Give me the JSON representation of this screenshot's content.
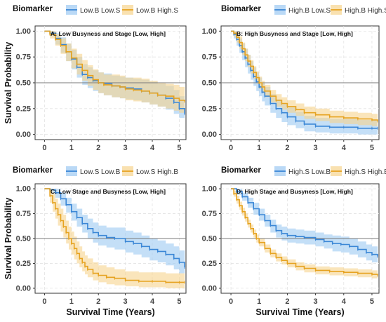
{
  "chart_data": [
    {
      "type": "line",
      "title": "A: Low Busyness and Stage [Low, High]",
      "legend_title": "Biomarker",
      "legend_placement": "top",
      "xlabel": "",
      "ylabel": "Survival Probability",
      "xlim": [
        0,
        5.2
      ],
      "ylim": [
        0,
        1
      ],
      "x_ticks": [
        "0",
        "1",
        "2",
        "3",
        "4",
        "5"
      ],
      "y_ticks": [
        "0.00",
        "0.25",
        "0.50",
        "0.75",
        "1.00"
      ],
      "reference_line": 0.5,
      "grid": true,
      "series": [
        {
          "name": "Low.B Low.S",
          "color": "#3b87d6",
          "band": "#9cc9f2",
          "x": [
            0,
            0.2,
            0.4,
            0.6,
            0.8,
            1.0,
            1.2,
            1.4,
            1.6,
            1.8,
            2.0,
            2.2,
            2.5,
            2.8,
            3.0,
            3.3,
            3.6,
            3.9,
            4.2,
            4.5,
            4.8,
            5.0,
            5.2
          ],
          "y": [
            1.0,
            0.98,
            0.93,
            0.87,
            0.8,
            0.73,
            0.65,
            0.58,
            0.55,
            0.52,
            0.5,
            0.49,
            0.47,
            0.46,
            0.45,
            0.44,
            0.42,
            0.4,
            0.38,
            0.35,
            0.31,
            0.25,
            0.2
          ],
          "lower": [
            1.0,
            0.95,
            0.87,
            0.79,
            0.71,
            0.63,
            0.55,
            0.48,
            0.45,
            0.42,
            0.4,
            0.38,
            0.36,
            0.35,
            0.34,
            0.33,
            0.31,
            0.29,
            0.27,
            0.24,
            0.2,
            0.16,
            0.12
          ],
          "upper": [
            1.0,
            1.0,
            0.98,
            0.94,
            0.88,
            0.82,
            0.75,
            0.68,
            0.65,
            0.62,
            0.6,
            0.59,
            0.57,
            0.56,
            0.55,
            0.54,
            0.53,
            0.51,
            0.49,
            0.47,
            0.43,
            0.37,
            0.32
          ]
        },
        {
          "name": "Low.B High.S",
          "color": "#e6a321",
          "band": "#f7d48e",
          "x": [
            0,
            0.2,
            0.4,
            0.6,
            0.8,
            1.0,
            1.2,
            1.4,
            1.6,
            1.8,
            2.0,
            2.2,
            2.5,
            2.8,
            3.0,
            3.3,
            3.6,
            3.9,
            4.2,
            4.5,
            4.8,
            5.0,
            5.2
          ],
          "y": [
            1.0,
            0.97,
            0.92,
            0.86,
            0.8,
            0.74,
            0.68,
            0.62,
            0.57,
            0.53,
            0.5,
            0.48,
            0.47,
            0.46,
            0.44,
            0.43,
            0.42,
            0.4,
            0.38,
            0.37,
            0.35,
            0.33,
            0.32
          ],
          "lower": [
            1.0,
            0.93,
            0.86,
            0.78,
            0.71,
            0.64,
            0.58,
            0.52,
            0.47,
            0.43,
            0.4,
            0.38,
            0.36,
            0.35,
            0.33,
            0.32,
            0.31,
            0.29,
            0.27,
            0.25,
            0.23,
            0.21,
            0.19
          ],
          "upper": [
            1.0,
            1.0,
            0.97,
            0.93,
            0.88,
            0.83,
            0.78,
            0.72,
            0.67,
            0.63,
            0.6,
            0.58,
            0.58,
            0.57,
            0.55,
            0.55,
            0.54,
            0.52,
            0.5,
            0.49,
            0.48,
            0.46,
            0.45
          ]
        }
      ]
    },
    {
      "type": "line",
      "title": "B: High Busyness and Stage [Low, High]",
      "legend_title": "Biomarker",
      "legend_placement": "top",
      "xlabel": "",
      "ylabel": "",
      "xlim": [
        0,
        5.2
      ],
      "ylim": [
        0,
        1
      ],
      "x_ticks": [
        "0",
        "1",
        "2",
        "3",
        "4",
        "5"
      ],
      "y_ticks": [
        "0.00",
        "0.25",
        "0.50",
        "0.75",
        "1.00"
      ],
      "reference_line": 0.5,
      "grid": true,
      "series": [
        {
          "name": "High.B Low.S",
          "color": "#3b87d6",
          "band": "#9cc9f2",
          "x": [
            0,
            0.1,
            0.2,
            0.3,
            0.4,
            0.5,
            0.6,
            0.7,
            0.8,
            0.9,
            1.0,
            1.1,
            1.2,
            1.4,
            1.6,
            1.8,
            2.0,
            2.3,
            2.6,
            3.0,
            3.5,
            4.0,
            4.5,
            5.0,
            5.2
          ],
          "y": [
            1.0,
            0.97,
            0.92,
            0.86,
            0.8,
            0.74,
            0.68,
            0.62,
            0.56,
            0.51,
            0.46,
            0.41,
            0.37,
            0.3,
            0.25,
            0.21,
            0.17,
            0.13,
            0.1,
            0.08,
            0.07,
            0.07,
            0.06,
            0.06,
            0.06
          ],
          "lower": [
            1.0,
            0.93,
            0.86,
            0.79,
            0.72,
            0.65,
            0.59,
            0.53,
            0.47,
            0.42,
            0.37,
            0.32,
            0.28,
            0.21,
            0.16,
            0.12,
            0.09,
            0.06,
            0.03,
            0.02,
            0.01,
            0.01,
            0.0,
            0.0,
            0.0
          ],
          "upper": [
            1.0,
            1.0,
            0.98,
            0.93,
            0.88,
            0.83,
            0.77,
            0.71,
            0.65,
            0.6,
            0.55,
            0.5,
            0.46,
            0.39,
            0.34,
            0.3,
            0.26,
            0.22,
            0.18,
            0.16,
            0.15,
            0.15,
            0.14,
            0.14,
            0.14
          ]
        },
        {
          "name": "High.B High.S",
          "color": "#e6a321",
          "band": "#f7d48e",
          "x": [
            0,
            0.1,
            0.2,
            0.3,
            0.4,
            0.5,
            0.6,
            0.7,
            0.8,
            0.9,
            1.0,
            1.1,
            1.2,
            1.4,
            1.6,
            1.8,
            2.0,
            2.3,
            2.6,
            3.0,
            3.5,
            4.0,
            4.5,
            5.0,
            5.2
          ],
          "y": [
            1.0,
            0.98,
            0.94,
            0.89,
            0.83,
            0.77,
            0.71,
            0.66,
            0.6,
            0.55,
            0.5,
            0.46,
            0.42,
            0.37,
            0.33,
            0.3,
            0.27,
            0.24,
            0.21,
            0.19,
            0.17,
            0.16,
            0.15,
            0.14,
            0.13
          ],
          "lower": [
            1.0,
            0.95,
            0.89,
            0.83,
            0.77,
            0.71,
            0.65,
            0.59,
            0.54,
            0.49,
            0.44,
            0.4,
            0.36,
            0.31,
            0.27,
            0.24,
            0.21,
            0.18,
            0.15,
            0.13,
            0.11,
            0.1,
            0.09,
            0.08,
            0.07
          ],
          "upper": [
            1.0,
            1.0,
            0.99,
            0.95,
            0.89,
            0.83,
            0.77,
            0.72,
            0.66,
            0.61,
            0.56,
            0.52,
            0.48,
            0.43,
            0.39,
            0.36,
            0.33,
            0.3,
            0.27,
            0.25,
            0.23,
            0.22,
            0.21,
            0.2,
            0.19
          ]
        }
      ]
    },
    {
      "type": "line",
      "title": "C: Low Stage and Busyness [Low, High]",
      "legend_title": "Biomarker",
      "legend_placement": "top",
      "xlabel": "Survival Time (Years)",
      "ylabel": "Survival Probability",
      "xlim": [
        0,
        5.2
      ],
      "ylim": [
        0,
        1
      ],
      "x_ticks": [
        "0",
        "1",
        "2",
        "3",
        "4",
        "5"
      ],
      "y_ticks": [
        "0.00",
        "0.25",
        "0.50",
        "0.75",
        "1.00"
      ],
      "reference_line": 0.5,
      "grid": true,
      "series": [
        {
          "name": "Low.S Low.B",
          "color": "#3b87d6",
          "band": "#9cc9f2",
          "x": [
            0,
            0.2,
            0.4,
            0.6,
            0.8,
            1.0,
            1.2,
            1.4,
            1.6,
            1.8,
            2.0,
            2.3,
            2.6,
            3.0,
            3.3,
            3.6,
            3.9,
            4.2,
            4.5,
            4.8,
            5.0,
            5.2
          ],
          "y": [
            1.0,
            0.99,
            0.96,
            0.9,
            0.84,
            0.77,
            0.71,
            0.65,
            0.6,
            0.56,
            0.53,
            0.51,
            0.5,
            0.47,
            0.45,
            0.42,
            0.39,
            0.37,
            0.34,
            0.3,
            0.26,
            0.21
          ],
          "lower": [
            1.0,
            0.96,
            0.91,
            0.83,
            0.76,
            0.68,
            0.62,
            0.56,
            0.5,
            0.46,
            0.43,
            0.41,
            0.39,
            0.36,
            0.34,
            0.31,
            0.28,
            0.26,
            0.23,
            0.19,
            0.15,
            0.11
          ],
          "upper": [
            1.0,
            1.0,
            1.0,
            0.96,
            0.91,
            0.85,
            0.8,
            0.74,
            0.7,
            0.66,
            0.63,
            0.61,
            0.61,
            0.58,
            0.56,
            0.53,
            0.5,
            0.48,
            0.45,
            0.42,
            0.38,
            0.33
          ]
        },
        {
          "name": "Low.S High.B",
          "color": "#e6a321",
          "band": "#f7d48e",
          "x": [
            0,
            0.2,
            0.3,
            0.4,
            0.5,
            0.6,
            0.7,
            0.8,
            0.9,
            1.0,
            1.1,
            1.2,
            1.3,
            1.4,
            1.5,
            1.6,
            1.8,
            2.0,
            2.3,
            2.6,
            3.0,
            3.5,
            4.0,
            4.5,
            5.0,
            5.2
          ],
          "y": [
            1.0,
            0.93,
            0.86,
            0.8,
            0.74,
            0.68,
            0.62,
            0.56,
            0.5,
            0.45,
            0.4,
            0.35,
            0.3,
            0.26,
            0.22,
            0.19,
            0.15,
            0.13,
            0.11,
            0.1,
            0.08,
            0.07,
            0.07,
            0.06,
            0.06,
            0.06
          ],
          "lower": [
            1.0,
            0.86,
            0.77,
            0.7,
            0.63,
            0.57,
            0.51,
            0.45,
            0.39,
            0.34,
            0.29,
            0.25,
            0.21,
            0.17,
            0.14,
            0.11,
            0.08,
            0.06,
            0.04,
            0.03,
            0.02,
            0.01,
            0.01,
            0.0,
            0.0,
            0.0
          ],
          "upper": [
            1.0,
            1.0,
            0.95,
            0.9,
            0.85,
            0.8,
            0.74,
            0.68,
            0.62,
            0.57,
            0.52,
            0.47,
            0.42,
            0.37,
            0.33,
            0.3,
            0.26,
            0.23,
            0.21,
            0.19,
            0.17,
            0.16,
            0.16,
            0.15,
            0.15,
            0.15
          ]
        }
      ]
    },
    {
      "type": "line",
      "title": "D: High Stage and Busyness [Low, High]",
      "legend_title": "Biomarker",
      "legend_placement": "top",
      "xlabel": "Survival Time (Years)",
      "ylabel": "",
      "xlim": [
        0,
        5.2
      ],
      "ylim": [
        0,
        1
      ],
      "x_ticks": [
        "0",
        "1",
        "2",
        "3",
        "4",
        "5"
      ],
      "y_ticks": [
        "0.00",
        "0.25",
        "0.50",
        "0.75",
        "1.00"
      ],
      "reference_line": 0.5,
      "grid": true,
      "series": [
        {
          "name": "High.S Low.B",
          "color": "#3b87d6",
          "band": "#9cc9f2",
          "x": [
            0,
            0.2,
            0.4,
            0.6,
            0.8,
            1.0,
            1.2,
            1.4,
            1.6,
            1.8,
            2.0,
            2.3,
            2.6,
            3.0,
            3.3,
            3.6,
            3.9,
            4.2,
            4.5,
            4.8,
            5.0,
            5.2
          ],
          "y": [
            1.0,
            0.97,
            0.92,
            0.86,
            0.8,
            0.74,
            0.68,
            0.63,
            0.58,
            0.55,
            0.53,
            0.52,
            0.51,
            0.49,
            0.47,
            0.45,
            0.44,
            0.42,
            0.39,
            0.36,
            0.34,
            0.32
          ],
          "lower": [
            1.0,
            0.94,
            0.88,
            0.81,
            0.74,
            0.68,
            0.62,
            0.56,
            0.51,
            0.48,
            0.46,
            0.45,
            0.44,
            0.42,
            0.4,
            0.37,
            0.36,
            0.34,
            0.31,
            0.28,
            0.26,
            0.24
          ],
          "upper": [
            1.0,
            1.0,
            0.96,
            0.91,
            0.86,
            0.8,
            0.74,
            0.69,
            0.64,
            0.62,
            0.6,
            0.59,
            0.58,
            0.56,
            0.54,
            0.53,
            0.52,
            0.5,
            0.47,
            0.44,
            0.42,
            0.4
          ]
        },
        {
          "name": "High.S High.B",
          "color": "#e6a321",
          "band": "#f7d48e",
          "x": [
            0,
            0.1,
            0.2,
            0.3,
            0.4,
            0.5,
            0.6,
            0.7,
            0.8,
            0.9,
            1.0,
            1.2,
            1.4,
            1.6,
            1.8,
            2.0,
            2.3,
            2.6,
            3.0,
            3.5,
            4.0,
            4.5,
            5.0,
            5.2
          ],
          "y": [
            1.0,
            0.95,
            0.89,
            0.83,
            0.77,
            0.71,
            0.65,
            0.6,
            0.55,
            0.5,
            0.46,
            0.4,
            0.35,
            0.31,
            0.28,
            0.25,
            0.22,
            0.2,
            0.18,
            0.17,
            0.16,
            0.15,
            0.14,
            0.13
          ],
          "lower": [
            1.0,
            0.92,
            0.85,
            0.79,
            0.73,
            0.67,
            0.61,
            0.56,
            0.51,
            0.46,
            0.42,
            0.36,
            0.31,
            0.27,
            0.24,
            0.21,
            0.18,
            0.16,
            0.14,
            0.13,
            0.12,
            0.11,
            0.1,
            0.09
          ],
          "upper": [
            1.0,
            0.98,
            0.93,
            0.87,
            0.81,
            0.75,
            0.69,
            0.64,
            0.59,
            0.54,
            0.5,
            0.44,
            0.39,
            0.35,
            0.32,
            0.29,
            0.26,
            0.24,
            0.22,
            0.21,
            0.2,
            0.19,
            0.18,
            0.17
          ]
        }
      ]
    }
  ]
}
